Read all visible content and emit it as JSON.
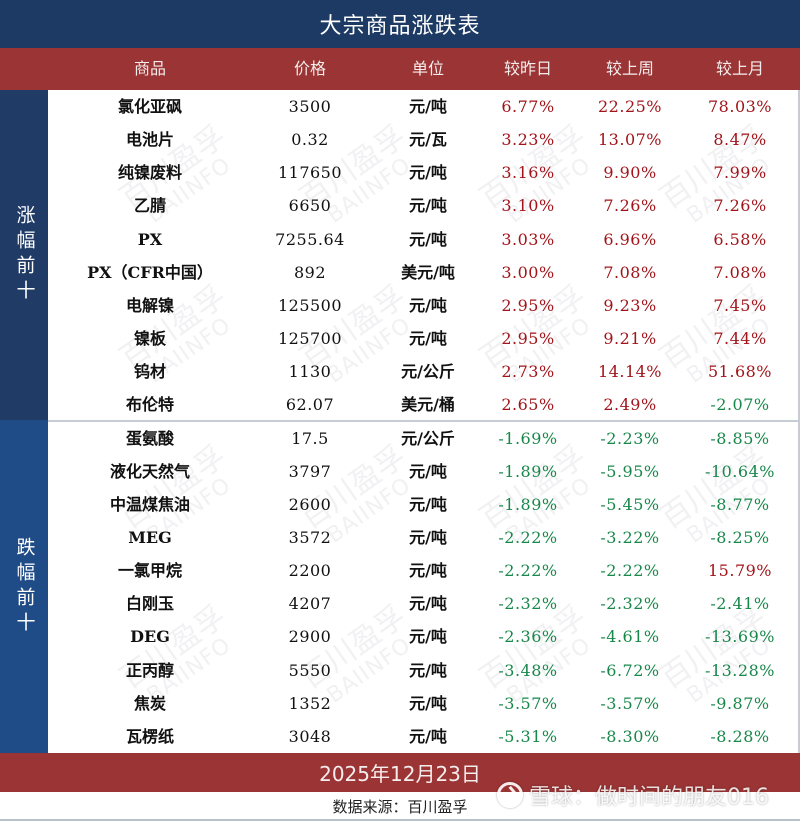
{
  "title": "大宗商品涨跌表",
  "columns": [
    "商品",
    "价格",
    "单位",
    "较昨日",
    "较上周",
    "较上月"
  ],
  "sections": {
    "gainers_label": "涨幅前十",
    "losers_label": "跌幅前十"
  },
  "rows": [
    {
      "name": "氯化亚砜",
      "price": "3500",
      "unit": "元/吨",
      "day": "6.77%",
      "week": "22.25%",
      "month": "78.03%",
      "day_dir": "pos",
      "week_dir": "pos",
      "month_dir": "pos"
    },
    {
      "name": "电池片",
      "price": "0.32",
      "unit": "元/瓦",
      "day": "3.23%",
      "week": "13.07%",
      "month": "8.47%",
      "day_dir": "pos",
      "week_dir": "pos",
      "month_dir": "pos"
    },
    {
      "name": "纯镍废料",
      "price": "117650",
      "unit": "元/吨",
      "day": "3.16%",
      "week": "9.90%",
      "month": "7.99%",
      "day_dir": "pos",
      "week_dir": "pos",
      "month_dir": "pos"
    },
    {
      "name": "乙腈",
      "price": "6650",
      "unit": "元/吨",
      "day": "3.10%",
      "week": "7.26%",
      "month": "7.26%",
      "day_dir": "pos",
      "week_dir": "pos",
      "month_dir": "pos"
    },
    {
      "name": "PX",
      "price": "7255.64",
      "unit": "元/吨",
      "day": "3.03%",
      "week": "6.96%",
      "month": "6.58%",
      "day_dir": "pos",
      "week_dir": "pos",
      "month_dir": "pos"
    },
    {
      "name": "PX（CFR中国）",
      "price": "892",
      "unit": "美元/吨",
      "day": "3.00%",
      "week": "7.08%",
      "month": "7.08%",
      "day_dir": "pos",
      "week_dir": "pos",
      "month_dir": "pos"
    },
    {
      "name": "电解镍",
      "price": "125500",
      "unit": "元/吨",
      "day": "2.95%",
      "week": "9.23%",
      "month": "7.45%",
      "day_dir": "pos",
      "week_dir": "pos",
      "month_dir": "pos"
    },
    {
      "name": "镍板",
      "price": "125700",
      "unit": "元/吨",
      "day": "2.95%",
      "week": "9.21%",
      "month": "7.44%",
      "day_dir": "pos",
      "week_dir": "pos",
      "month_dir": "pos"
    },
    {
      "name": "钨材",
      "price": "1130",
      "unit": "元/公斤",
      "day": "2.73%",
      "week": "14.14%",
      "month": "51.68%",
      "day_dir": "pos",
      "week_dir": "pos",
      "month_dir": "pos"
    },
    {
      "name": "布伦特",
      "price": "62.07",
      "unit": "美元/桶",
      "day": "2.65%",
      "week": "2.49%",
      "month": "-2.07%",
      "day_dir": "pos",
      "week_dir": "pos",
      "month_dir": "neg"
    },
    {
      "name": "蛋氨酸",
      "price": "17.5",
      "unit": "元/公斤",
      "day": "-1.69%",
      "week": "-2.23%",
      "month": "-8.85%",
      "day_dir": "neg",
      "week_dir": "neg",
      "month_dir": "neg"
    },
    {
      "name": "液化天然气",
      "price": "3797",
      "unit": "元/吨",
      "day": "-1.89%",
      "week": "-5.95%",
      "month": "-10.64%",
      "day_dir": "neg",
      "week_dir": "neg",
      "month_dir": "neg"
    },
    {
      "name": "中温煤焦油",
      "price": "2600",
      "unit": "元/吨",
      "day": "-1.89%",
      "week": "-5.45%",
      "month": "-8.77%",
      "day_dir": "neg",
      "week_dir": "neg",
      "month_dir": "neg"
    },
    {
      "name": "MEG",
      "price": "3572",
      "unit": "元/吨",
      "day": "-2.22%",
      "week": "-3.22%",
      "month": "-8.25%",
      "day_dir": "neg",
      "week_dir": "neg",
      "month_dir": "neg"
    },
    {
      "name": "一氯甲烷",
      "price": "2200",
      "unit": "元/吨",
      "day": "-2.22%",
      "week": "-2.22%",
      "month": "15.79%",
      "day_dir": "neg",
      "week_dir": "neg",
      "month_dir": "pos"
    },
    {
      "name": "白刚玉",
      "price": "4207",
      "unit": "元/吨",
      "day": "-2.32%",
      "week": "-2.32%",
      "month": "-2.41%",
      "day_dir": "neg",
      "week_dir": "neg",
      "month_dir": "neg"
    },
    {
      "name": "DEG",
      "price": "2900",
      "unit": "元/吨",
      "day": "-2.36%",
      "week": "-4.61%",
      "month": "-13.69%",
      "day_dir": "neg",
      "week_dir": "neg",
      "month_dir": "neg"
    },
    {
      "name": "正丙醇",
      "price": "5550",
      "unit": "元/吨",
      "day": "-3.48%",
      "week": "-6.72%",
      "month": "-13.28%",
      "day_dir": "neg",
      "week_dir": "neg",
      "month_dir": "neg"
    },
    {
      "name": "焦炭",
      "price": "1352",
      "unit": "元/吨",
      "day": "-3.57%",
      "week": "-3.57%",
      "month": "-9.87%",
      "day_dir": "neg",
      "week_dir": "neg",
      "month_dir": "neg"
    },
    {
      "name": "瓦楞纸",
      "price": "3048",
      "unit": "元/吨",
      "day": "-5.31%",
      "week": "-8.30%",
      "month": "-8.28%",
      "day_dir": "neg",
      "week_dir": "neg",
      "month_dir": "neg"
    }
  ],
  "footer": {
    "date": "2025年12月23日",
    "source": "数据来源：百川盈孚"
  },
  "watermarks": {
    "brand_cn": "百川盈孚",
    "brand_en": "BAIINFO",
    "overlay_text": "雪球：做时间的朋友016",
    "overlay_icon": "xueqiu-logo-icon"
  },
  "colors": {
    "title_bg": "#1c3a63",
    "header_bg": "#9b3434",
    "gainers_bg": "#1f3b66",
    "losers_bg": "#1f4b86",
    "positive": "#a1141a",
    "negative": "#18874a"
  }
}
